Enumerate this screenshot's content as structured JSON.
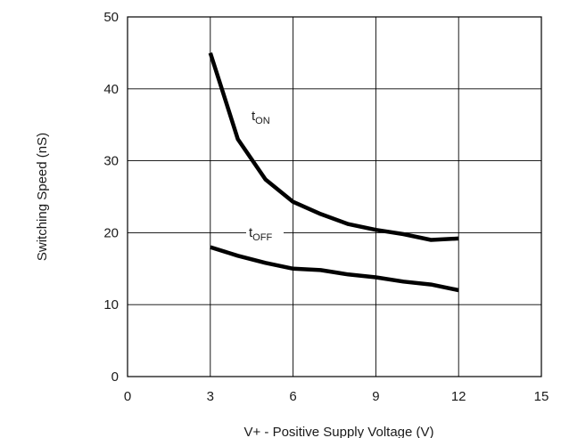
{
  "chart_data": {
    "type": "line",
    "title": "",
    "xlabel": "V+ - Positive Supply Voltage (V)",
    "ylabel": "Switching Speed (nS)",
    "xlim": [
      0,
      15
    ],
    "ylim": [
      0,
      50
    ],
    "xticks": [
      0,
      3,
      6,
      9,
      12,
      15
    ],
    "yticks": [
      0,
      10,
      20,
      30,
      40,
      50
    ],
    "xtick_labels": [
      "0",
      "3",
      "6",
      "9",
      "12",
      "15"
    ],
    "ytick_labels": [
      "0",
      "10",
      "20",
      "30",
      "40",
      "50"
    ],
    "grid": true,
    "legend": "none",
    "series": [
      {
        "name": "tON",
        "label_main": "t",
        "label_sub": "ON",
        "color": "#000000",
        "x": [
          3,
          3.5,
          4,
          5,
          6,
          7,
          8,
          9,
          10,
          11,
          12
        ],
        "y": [
          45,
          39,
          33,
          27.4,
          24.3,
          22.6,
          21.2,
          20.4,
          19.8,
          19.0,
          19.2
        ]
      },
      {
        "name": "tOFF",
        "label_main": "t",
        "label_sub": "OFF",
        "color": "#000000",
        "x": [
          3,
          4,
          5,
          6,
          7,
          8,
          9,
          10,
          11,
          12
        ],
        "y": [
          18,
          16.8,
          15.8,
          15.0,
          14.8,
          14.2,
          13.8,
          13.2,
          12.8,
          12.0
        ]
      }
    ]
  }
}
